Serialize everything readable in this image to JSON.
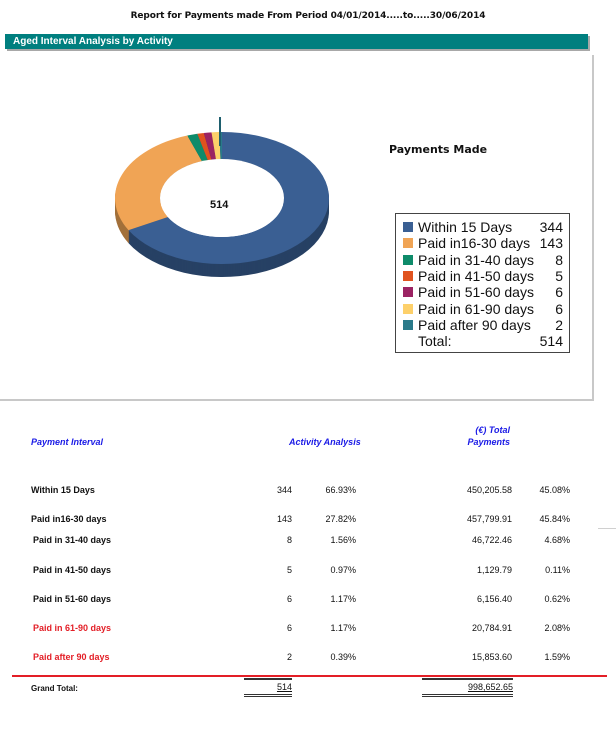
{
  "report": {
    "title": "Report for Payments made From Period 04/01/2014.....to.....30/06/2014",
    "section_header": "Aged Interval Analysis by Activity"
  },
  "chart": {
    "title": "Payments Made",
    "center_label": "514",
    "legend_total_label": "Total:",
    "legend_total_value": "514"
  },
  "chart_data": {
    "type": "pie",
    "subtype": "donut-3d",
    "title": "Payments Made",
    "center_label": "514",
    "categories": [
      "Within 15 Days",
      "Paid in16-30 days",
      "Paid in 31-40 days",
      "Paid in 41-50 days",
      "Paid in 51-60 days",
      "Paid in 61-90 days",
      "Paid after 90 days"
    ],
    "values": [
      344,
      143,
      8,
      5,
      6,
      6,
      2
    ],
    "colors": [
      "#3a5f93",
      "#f0a455",
      "#0e8b6a",
      "#e0531f",
      "#9b2363",
      "#fdd06a",
      "#2a7a8a"
    ],
    "total": 514,
    "legend_position": "right"
  },
  "legend": [
    {
      "label": "Within 15 Days",
      "value": "344",
      "color": "#3a5f93"
    },
    {
      "label": "Paid in16-30 days",
      "value": "143",
      "color": "#f0a455"
    },
    {
      "label": "Paid in 31-40 days",
      "value": "8",
      "color": "#0e8b6a"
    },
    {
      "label": "Paid in 41-50 days",
      "value": "5",
      "color": "#e0531f"
    },
    {
      "label": "Paid in 51-60 days",
      "value": "6",
      "color": "#9b2363"
    },
    {
      "label": "Paid in 61-90 days",
      "value": "6",
      "color": "#fdd06a"
    },
    {
      "label": "Paid after 90 days",
      "value": "2",
      "color": "#2a7a8a"
    }
  ],
  "table": {
    "headers": {
      "interval": "Payment Interval",
      "activity": "Activity Analysis",
      "total_line1": "(€) Total",
      "total_line2": "Payments"
    },
    "rows": [
      {
        "label": "Within 15 Days",
        "count": "344",
        "count_pct": "66.93%",
        "amount": "450,205.58",
        "amount_pct": "45.08%"
      },
      {
        "label": "Paid in16-30 days",
        "count": "143",
        "count_pct": "27.82%",
        "amount": "457,799.91",
        "amount_pct": "45.84%"
      },
      {
        "label": "Paid in 31-40 days",
        "count": "8",
        "count_pct": "1.56%",
        "amount": "46,722.46",
        "amount_pct": "4.68%"
      },
      {
        "label": "Paid in 41-50 days",
        "count": "5",
        "count_pct": "0.97%",
        "amount": "1,129.79",
        "amount_pct": "0.11%"
      },
      {
        "label": "Paid in 51-60 days",
        "count": "6",
        "count_pct": "1.17%",
        "amount": "6,156.40",
        "amount_pct": "0.62%"
      },
      {
        "label": "Paid in 61-90 days",
        "count": "6",
        "count_pct": "1.17%",
        "amount": "20,784.91",
        "amount_pct": "2.08%"
      },
      {
        "label": "Paid after 90 days",
        "count": "2",
        "count_pct": "0.39%",
        "amount": "15,853.60",
        "amount_pct": "1.59%"
      }
    ],
    "grand_total": {
      "label": "Grand Total:",
      "count": "514",
      "amount": "998,652.65"
    },
    "highlight_color": "#e31e26",
    "header_color": "#1a1ae6"
  }
}
